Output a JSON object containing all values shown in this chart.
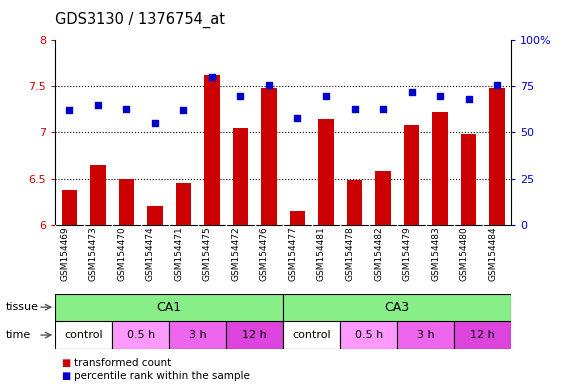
{
  "title": "GDS3130 / 1376754_at",
  "samples": [
    "GSM154469",
    "GSM154473",
    "GSM154470",
    "GSM154474",
    "GSM154471",
    "GSM154475",
    "GSM154472",
    "GSM154476",
    "GSM154477",
    "GSM154481",
    "GSM154478",
    "GSM154482",
    "GSM154479",
    "GSM154483",
    "GSM154480",
    "GSM154484"
  ],
  "red_values": [
    6.38,
    6.65,
    6.5,
    6.2,
    6.45,
    7.62,
    7.05,
    7.48,
    6.15,
    7.15,
    6.48,
    6.58,
    7.08,
    7.22,
    6.98,
    7.48
  ],
  "blue_values": [
    62,
    65,
    63,
    55,
    62,
    80,
    70,
    76,
    58,
    70,
    63,
    63,
    72,
    70,
    68,
    76
  ],
  "ylim_red": [
    6.0,
    8.0
  ],
  "ylim_blue": [
    0,
    100
  ],
  "yticks_red": [
    6.0,
    6.5,
    7.0,
    7.5,
    8.0
  ],
  "yticks_blue": [
    0,
    25,
    50,
    75,
    100
  ],
  "ytick_labels_red": [
    "6",
    "6.5",
    "7",
    "7.5",
    "8"
  ],
  "ytick_labels_blue": [
    "0",
    "25",
    "50",
    "75",
    "100%"
  ],
  "hlines": [
    6.5,
    7.0,
    7.5
  ],
  "bar_color": "#cc0000",
  "dot_color": "#0000cc",
  "bg_color": "#ffffff",
  "left_tick_color": "#cc0000",
  "right_tick_color": "#0000cc",
  "bar_width": 0.55,
  "dot_size": 22,
  "tissue_color": "#88ee88",
  "tissue_groups": [
    {
      "text": "CA1",
      "start": 0,
      "end": 7
    },
    {
      "text": "CA3",
      "start": 8,
      "end": 15
    }
  ],
  "time_defs": [
    {
      "text": "control",
      "start": 0,
      "end": 1,
      "color": "#ffffff"
    },
    {
      "text": "0.5 h",
      "start": 2,
      "end": 3,
      "color": "#ff99ff"
    },
    {
      "text": "3 h",
      "start": 4,
      "end": 5,
      "color": "#ee66ee"
    },
    {
      "text": "12 h",
      "start": 6,
      "end": 7,
      "color": "#dd44dd"
    },
    {
      "text": "control",
      "start": 8,
      "end": 9,
      "color": "#ffffff"
    },
    {
      "text": "0.5 h",
      "start": 10,
      "end": 11,
      "color": "#ff99ff"
    },
    {
      "text": "3 h",
      "start": 12,
      "end": 13,
      "color": "#ee66ee"
    },
    {
      "text": "12 h",
      "start": 14,
      "end": 15,
      "color": "#dd44dd"
    }
  ]
}
